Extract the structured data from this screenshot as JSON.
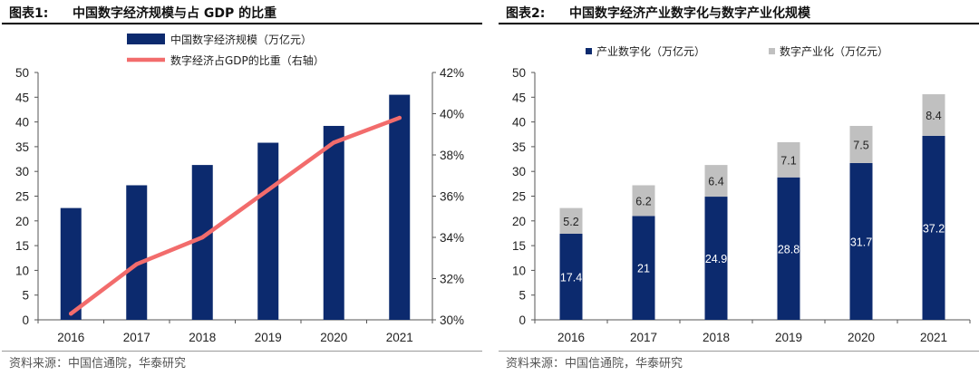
{
  "left": {
    "fig_label": "图表1:",
    "title": "中国数字经济规模与占 GDP 的比重",
    "source": "资料来源：中国信通院，华泰研究",
    "legend": [
      "中国数字经济规模（万亿元）",
      "数字经济占GDP的比重（右轴）"
    ]
  },
  "right": {
    "fig_label": "图表2:",
    "title": "中国数字经济产业数字化与数字产业化规模",
    "source": "资料来源：中国信通院，华泰研究",
    "legend": [
      "产业数字化（万亿元）",
      "数字产业化（万亿元）"
    ]
  },
  "chart_data": [
    {
      "type": "bar+line",
      "title": "中国数字经济规模与占 GDP 的比重",
      "categories": [
        "2016",
        "2017",
        "2018",
        "2019",
        "2020",
        "2021"
      ],
      "series": [
        {
          "name": "中国数字经济规模（万亿元）",
          "kind": "bar",
          "axis": "left",
          "color": "#0c2a6e",
          "values": [
            22.6,
            27.2,
            31.3,
            35.8,
            39.2,
            45.5
          ]
        },
        {
          "name": "数字经济占GDP的比重（右轴）",
          "kind": "line",
          "axis": "right",
          "color": "#f26c6c",
          "values": [
            30.3,
            32.7,
            34.0,
            36.3,
            38.6,
            39.8
          ]
        }
      ],
      "ylim": [
        0,
        50
      ],
      "yticks": [
        "0",
        "5",
        "10",
        "15",
        "20",
        "25",
        "30",
        "35",
        "40",
        "45",
        "50"
      ],
      "y2lim": [
        30,
        42
      ],
      "y2ticks": [
        "30%",
        "32%",
        "34%",
        "36%",
        "38%",
        "40%",
        "42%"
      ],
      "legend_position": "top"
    },
    {
      "type": "stacked-bar",
      "title": "中国数字经济产业数字化与数字产业化规模",
      "categories": [
        "2016",
        "2017",
        "2018",
        "2019",
        "2020",
        "2021"
      ],
      "series": [
        {
          "name": "产业数字化（万亿元）",
          "color": "#0c2a6e",
          "values": [
            17.4,
            21,
            24.9,
            28.8,
            31.7,
            37.2
          ],
          "labels": [
            "17.4",
            "21",
            "24.9",
            "28.8",
            "31.7",
            "37.2"
          ]
        },
        {
          "name": "数字产业化（万亿元）",
          "color": "#c0c0c0",
          "values": [
            5.2,
            6.2,
            6.4,
            7.1,
            7.5,
            8.4
          ],
          "labels": [
            "5.2",
            "6.2",
            "6.4",
            "7.1",
            "7.5",
            "8.4"
          ]
        }
      ],
      "ylim": [
        0,
        50
      ],
      "yticks": [
        "0",
        "5",
        "10",
        "15",
        "20",
        "25",
        "30",
        "35",
        "40",
        "45",
        "50"
      ],
      "legend_position": "top"
    }
  ]
}
